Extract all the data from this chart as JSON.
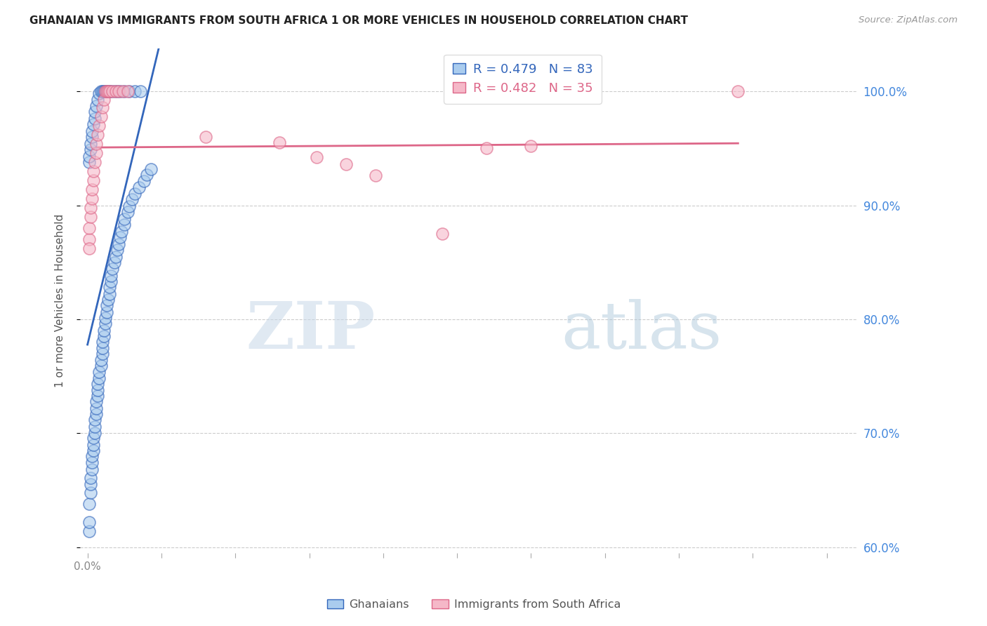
{
  "title": "GHANAIAN VS IMMIGRANTS FROM SOUTH AFRICA 1 OR MORE VEHICLES IN HOUSEHOLD CORRELATION CHART",
  "source": "Source: ZipAtlas.com",
  "ylabel": "1 or more Vehicles in Household",
  "xlim": [
    -0.005,
    0.52
  ],
  "ylim": [
    0.595,
    1.038
  ],
  "xticks": [
    0.0,
    0.05,
    0.1,
    0.15,
    0.2,
    0.25,
    0.3,
    0.35,
    0.4,
    0.45,
    0.5
  ],
  "yticks": [
    0.6,
    0.7,
    0.8,
    0.9,
    1.0
  ],
  "blue_color": "#aaccee",
  "blue_line_color": "#3366bb",
  "pink_color": "#f5b8c8",
  "pink_line_color": "#dd6688",
  "R_blue": 0.479,
  "N_blue": 83,
  "R_pink": 0.482,
  "N_pink": 35,
  "legend_label_blue": "Ghanaians",
  "legend_label_pink": "Immigrants from South Africa",
  "blue_x": [
    0.001,
    0.001,
    0.001,
    0.002,
    0.002,
    0.002,
    0.003,
    0.003,
    0.003,
    0.004,
    0.004,
    0.004,
    0.005,
    0.005,
    0.005,
    0.006,
    0.006,
    0.006,
    0.007,
    0.007,
    0.007,
    0.008,
    0.008,
    0.009,
    0.009,
    0.01,
    0.01,
    0.01,
    0.011,
    0.011,
    0.012,
    0.012,
    0.013,
    0.013,
    0.014,
    0.015,
    0.015,
    0.016,
    0.016,
    0.017,
    0.018,
    0.019,
    0.02,
    0.021,
    0.022,
    0.023,
    0.025,
    0.025,
    0.027,
    0.028,
    0.03,
    0.032,
    0.035,
    0.038,
    0.04,
    0.043,
    0.001,
    0.001,
    0.002,
    0.002,
    0.003,
    0.003,
    0.004,
    0.005,
    0.005,
    0.006,
    0.007,
    0.008,
    0.009,
    0.01,
    0.011,
    0.012,
    0.013,
    0.014,
    0.015,
    0.016,
    0.018,
    0.02,
    0.022,
    0.025,
    0.028,
    0.032,
    0.036
  ],
  "blue_y": [
    0.614,
    0.622,
    0.638,
    0.648,
    0.655,
    0.661,
    0.668,
    0.674,
    0.68,
    0.685,
    0.69,
    0.696,
    0.7,
    0.706,
    0.712,
    0.717,
    0.722,
    0.728,
    0.733,
    0.738,
    0.743,
    0.748,
    0.754,
    0.759,
    0.764,
    0.77,
    0.775,
    0.78,
    0.785,
    0.79,
    0.796,
    0.801,
    0.806,
    0.812,
    0.817,
    0.822,
    0.828,
    0.833,
    0.838,
    0.844,
    0.85,
    0.855,
    0.861,
    0.866,
    0.872,
    0.877,
    0.883,
    0.888,
    0.894,
    0.899,
    0.905,
    0.91,
    0.916,
    0.921,
    0.927,
    0.932,
    0.938,
    0.943,
    0.949,
    0.954,
    0.96,
    0.965,
    0.971,
    0.976,
    0.982,
    0.987,
    0.993,
    0.998,
    1.0,
    1.0,
    1.0,
    1.0,
    1.0,
    1.0,
    1.0,
    1.0,
    1.0,
    1.0,
    1.0,
    1.0,
    1.0,
    1.0,
    1.0
  ],
  "pink_x": [
    0.001,
    0.001,
    0.002,
    0.002,
    0.003,
    0.003,
    0.004,
    0.004,
    0.005,
    0.006,
    0.006,
    0.007,
    0.008,
    0.009,
    0.01,
    0.011,
    0.012,
    0.013,
    0.014,
    0.015,
    0.017,
    0.019,
    0.021,
    0.024,
    0.027,
    0.08,
    0.13,
    0.155,
    0.175,
    0.195,
    0.24,
    0.27,
    0.3,
    0.44,
    0.001
  ],
  "pink_y": [
    0.87,
    0.88,
    0.89,
    0.898,
    0.906,
    0.914,
    0.922,
    0.93,
    0.938,
    0.946,
    0.954,
    0.962,
    0.97,
    0.978,
    0.986,
    0.993,
    1.0,
    1.0,
    1.0,
    1.0,
    1.0,
    1.0,
    1.0,
    1.0,
    1.0,
    0.96,
    0.955,
    0.942,
    0.936,
    0.926,
    0.875,
    0.95,
    0.952,
    1.0,
    0.862
  ]
}
